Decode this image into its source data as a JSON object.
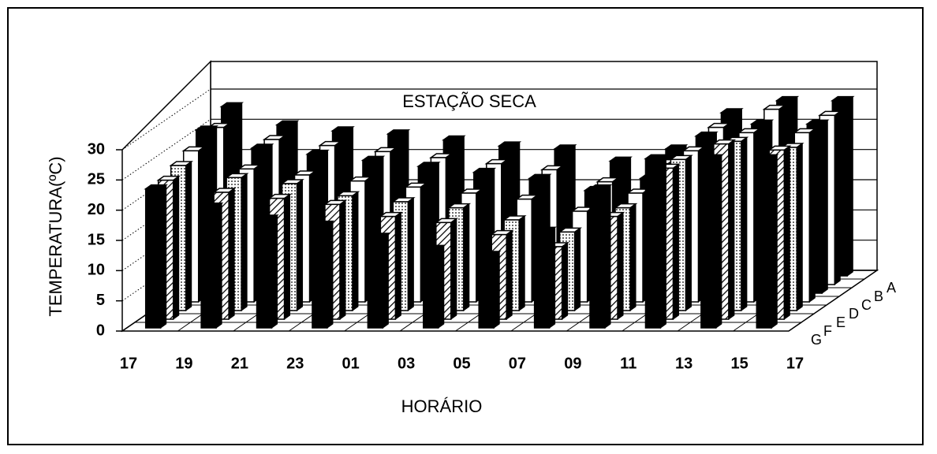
{
  "chart_data": {
    "type": "bar3d",
    "title": "ESTAÇÃO SECA",
    "x_label": "HORÁRIO",
    "y_label": "TEMPERATURA(ºC)",
    "x_labels": [
      "17",
      "19",
      "21",
      "23",
      "01",
      "03",
      "05",
      "07",
      "09",
      "11",
      "13",
      "15",
      "17"
    ],
    "ylim": [
      0,
      30
    ],
    "yticks": [
      0,
      5,
      10,
      15,
      20,
      25,
      30
    ],
    "grid": true,
    "series": [
      {
        "name": "A",
        "color": "#000000",
        "pattern": "solid",
        "values": [
          28,
          25,
          24,
          23.5,
          22.5,
          21.5,
          21,
          19,
          21,
          27,
          29,
          29
        ]
      },
      {
        "name": "B",
        "color": "#ffffff",
        "pattern": "solid",
        "values": [
          26,
          24,
          23,
          22,
          21,
          20,
          19,
          17,
          20,
          26,
          29,
          28
        ]
      },
      {
        "name": "C",
        "color": "#000000",
        "pattern": "solid",
        "values": [
          27,
          24,
          23,
          22,
          21,
          20,
          19,
          17,
          19,
          26,
          28,
          28
        ]
      },
      {
        "name": "D",
        "color": "#ffffff",
        "pattern": "solid",
        "values": [
          25,
          22,
          21,
          20,
          19,
          18,
          17,
          15,
          18,
          25,
          28,
          28
        ]
      },
      {
        "name": "E",
        "color": "#ffffff",
        "pattern": "dots",
        "values": [
          24,
          22,
          21,
          19,
          18,
          17,
          15,
          13,
          17,
          25,
          28,
          27
        ]
      },
      {
        "name": "F",
        "color": "#ffffff",
        "pattern": "hatch",
        "values": [
          23,
          21,
          20,
          19,
          17,
          16,
          14,
          12,
          17,
          25,
          29,
          28
        ]
      },
      {
        "name": "G",
        "color": "#000000",
        "pattern": "solid",
        "values": [
          23,
          20,
          18,
          17,
          15,
          13,
          12,
          16,
          23,
          28,
          28,
          28
        ]
      }
    ]
  }
}
